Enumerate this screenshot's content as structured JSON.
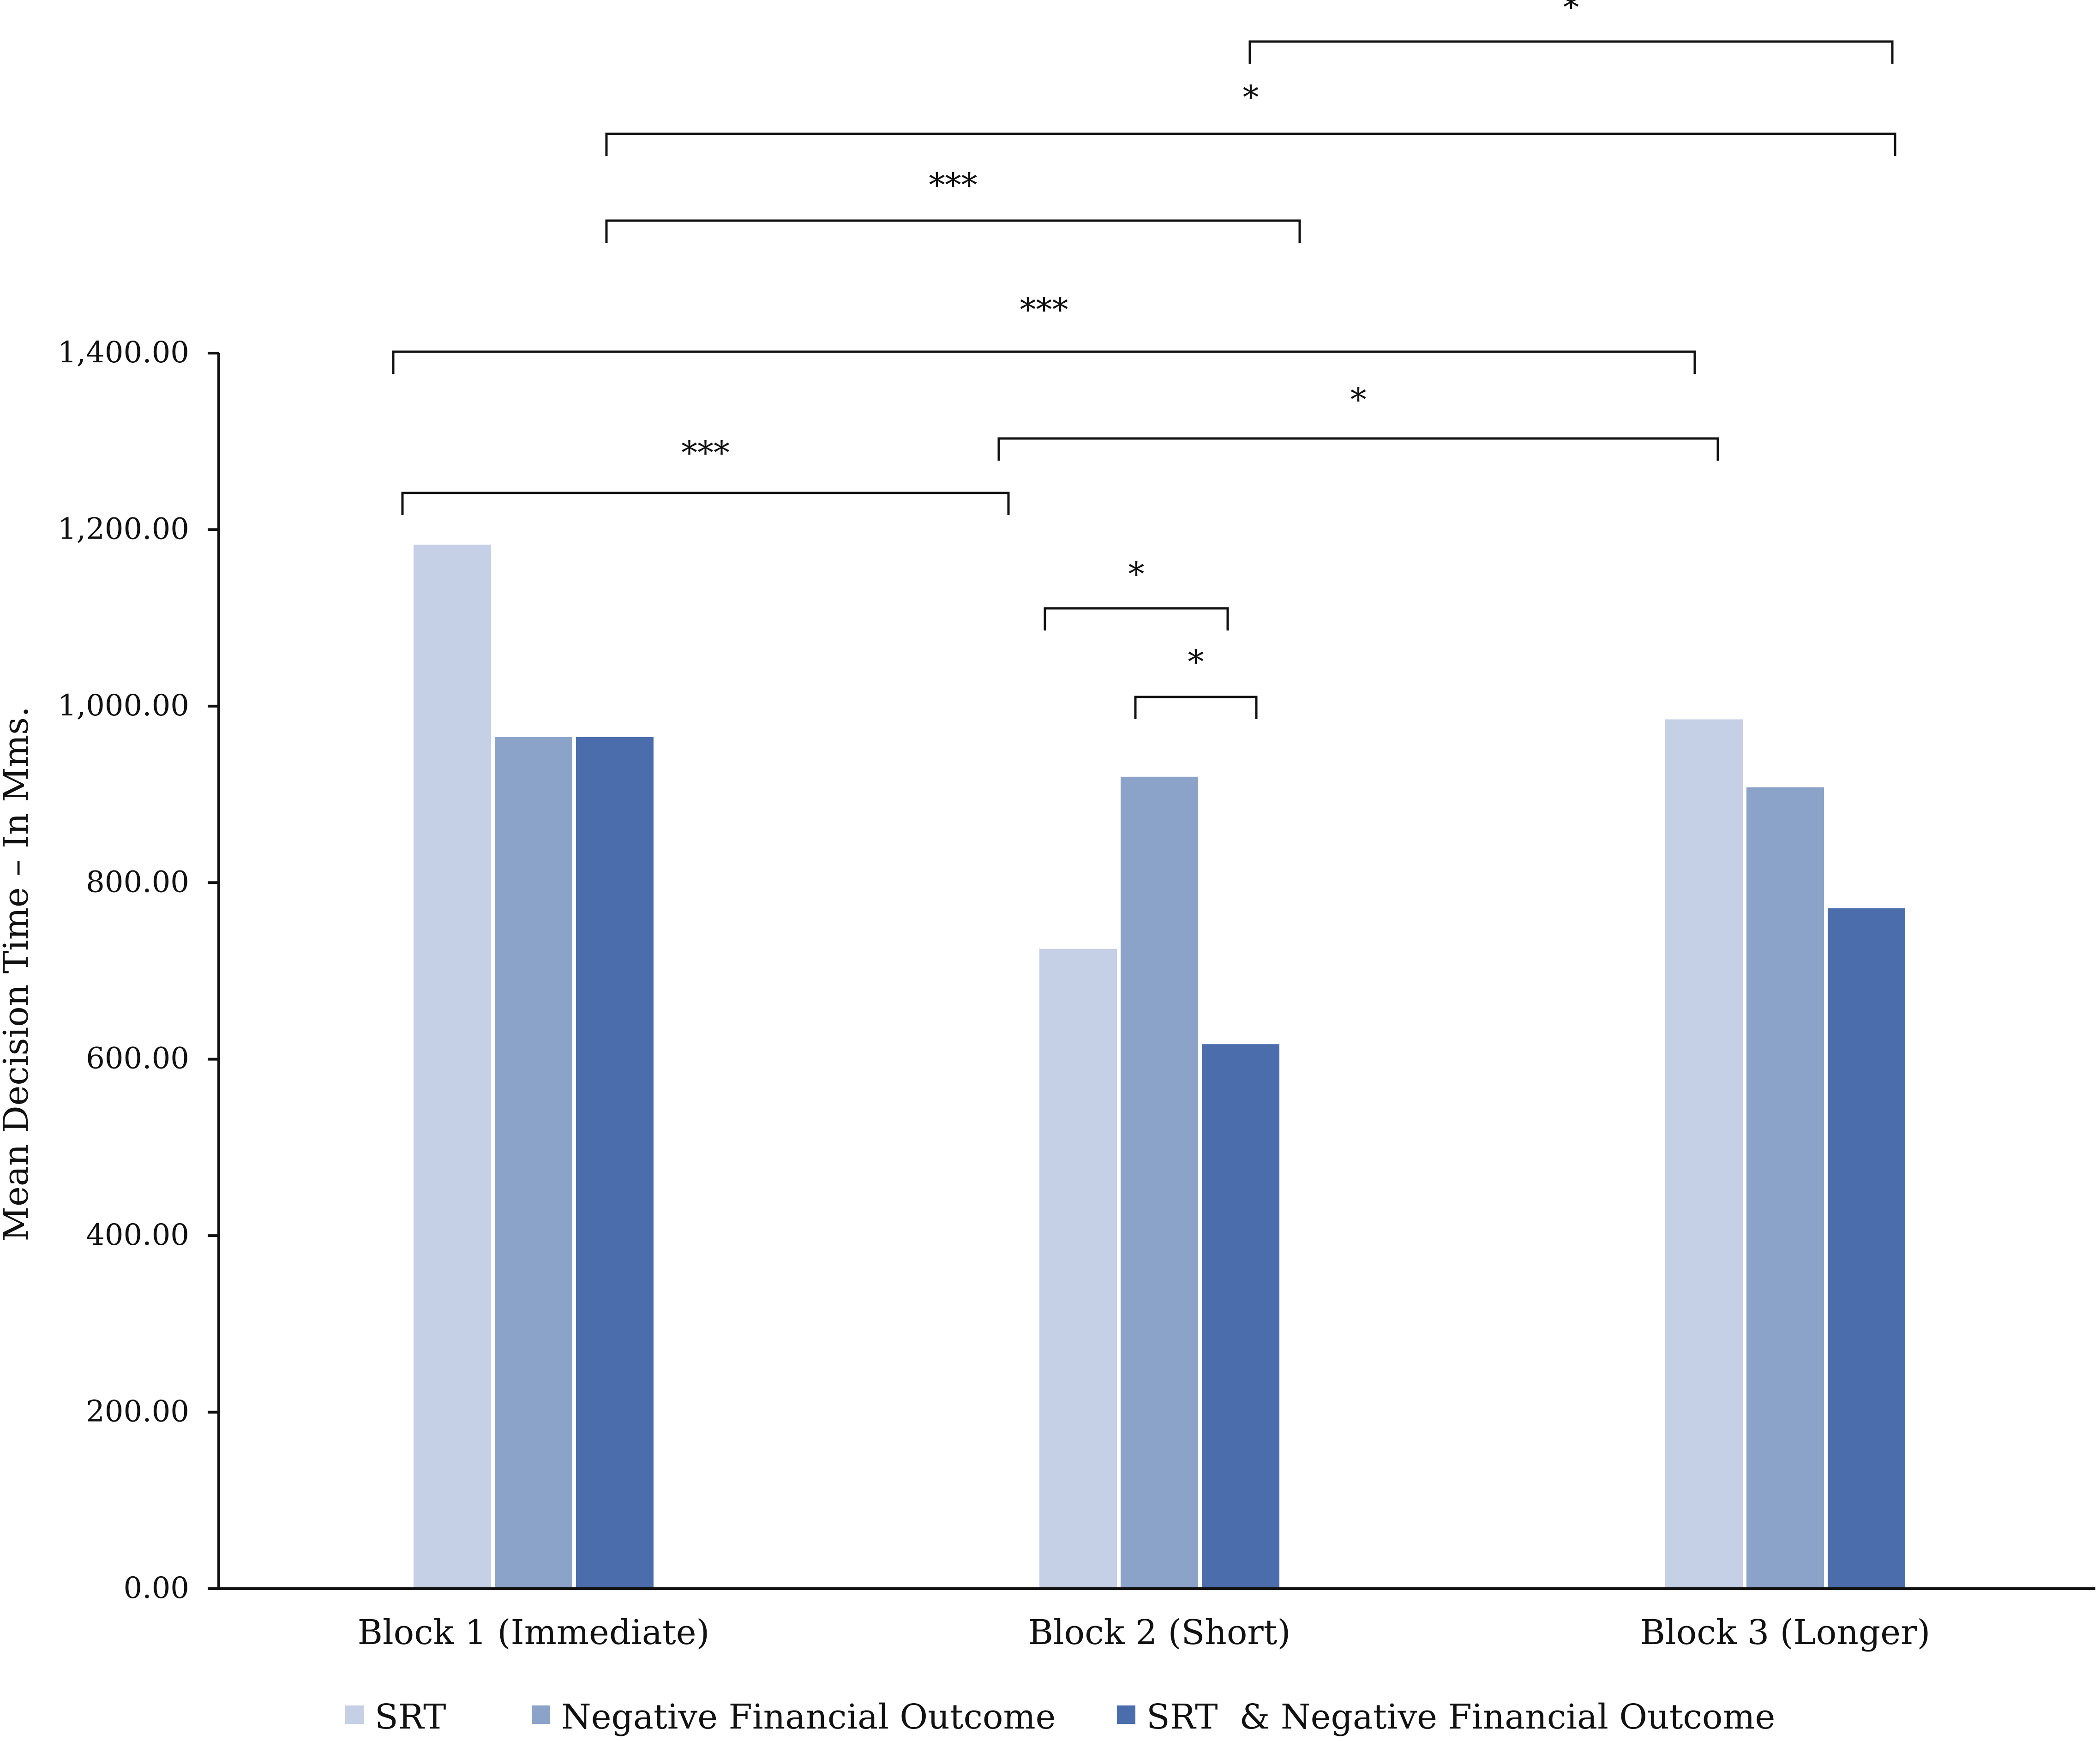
{
  "chart_data": {
    "type": "bar",
    "title": "",
    "xlabel": "",
    "ylabel": "Mean Decision Time – In Mms.",
    "ylim": [
      0,
      1400
    ],
    "yticks": [
      "0.00",
      "200.00",
      "400.00",
      "600.00",
      "800.00",
      "1,000.00",
      "1,200.00",
      "1,400.00"
    ],
    "ytick_values": [
      0,
      200,
      400,
      600,
      800,
      1000,
      1200,
      1400
    ],
    "categories": [
      "Block 1 (Immediate)",
      "Block 2 (Short)",
      "Block 3 (Longer)"
    ],
    "series": [
      {
        "name": "SRT",
        "color": "#c5cfe6",
        "values": [
          1183,
          725,
          985
        ]
      },
      {
        "name": "Negative Financial Outcome",
        "color": "#8ba2c9",
        "values": [
          965,
          920,
          908
        ]
      },
      {
        "name": "SRT  & Negative Financial Outcome",
        "color": "#4c6dac",
        "values": [
          965,
          617,
          771
        ]
      }
    ],
    "legend_position": "bottom",
    "grid": false,
    "significance": [
      {
        "label": "***",
        "from": "Block 1 (Immediate) SRT",
        "to": "Block 2 (Short)"
      },
      {
        "label": "***",
        "from": "Block 1 (Immediate) SRT",
        "to": "Block 3 (Longer) SRT"
      },
      {
        "label": "***",
        "from": "Block 1 (Immediate) Negative Financial Outcome",
        "to": "Block 2 (Short) Negative Financial Outcome"
      },
      {
        "label": "*",
        "from": "Block 1 (Immediate) Negative Financial Outcome",
        "to": "Block 3 (Longer)"
      },
      {
        "label": "*",
        "from": "Block 2 (Short) Negative Financial Outcome",
        "to": "Block 3 (Longer)"
      },
      {
        "label": "*",
        "from": "Block 2 (Short)",
        "to": "Block 3 (Longer) SRT"
      },
      {
        "label": "*",
        "from": "Block 2 (Short) SRT",
        "to": "Block 2 (Short) Negative Financial Outcome"
      },
      {
        "label": "*",
        "from": "Block 2 (Short) Negative Financial Outcome",
        "to": "Block 2 (Short) SRT  & Negative Financial Outcome"
      }
    ]
  }
}
